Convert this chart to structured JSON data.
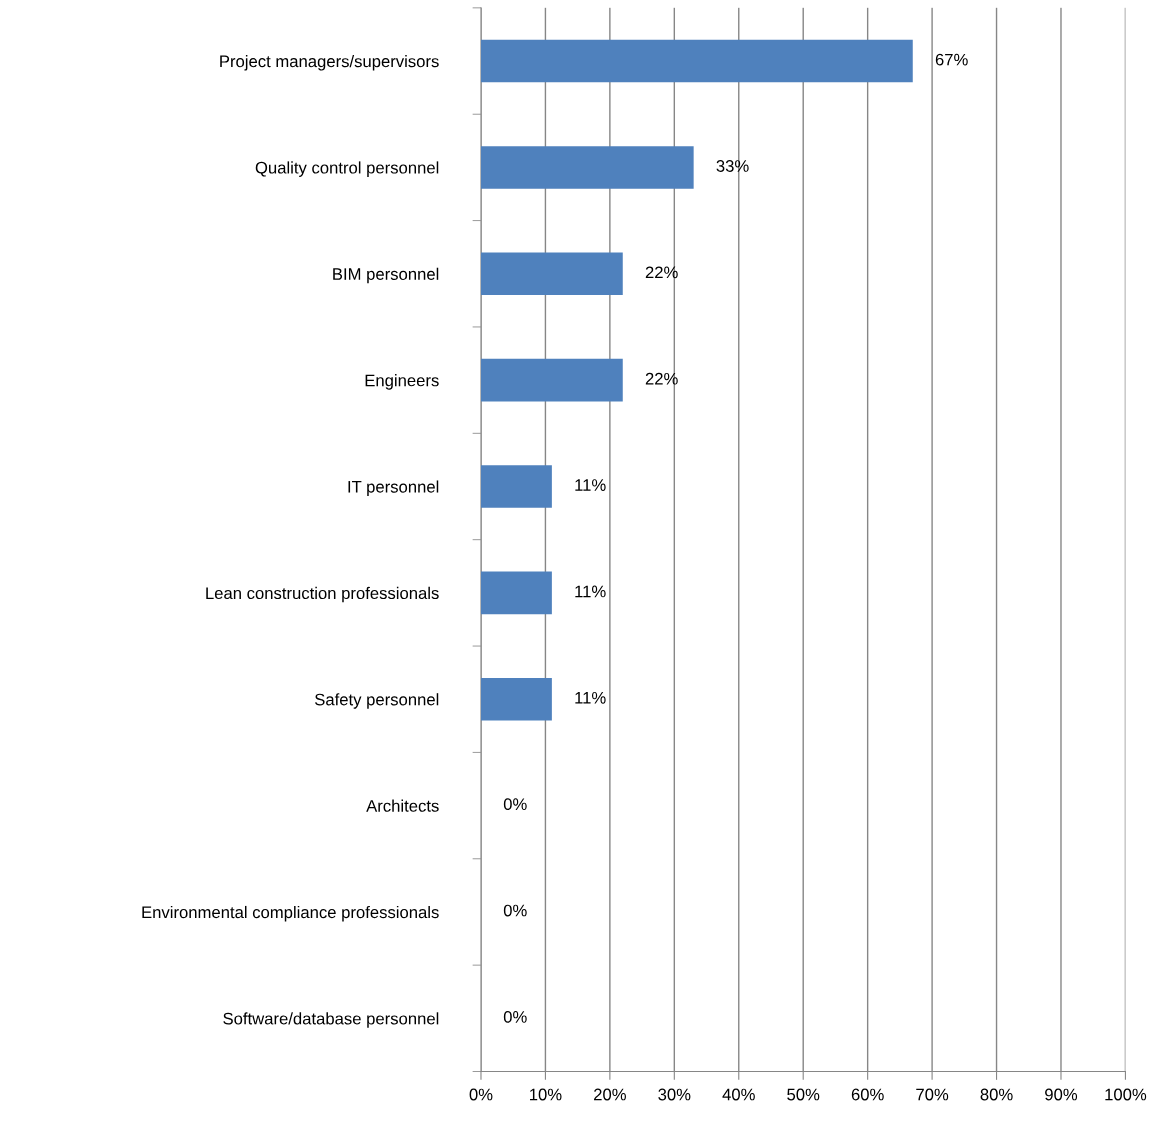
{
  "chart_data": {
    "type": "bar",
    "orientation": "horizontal",
    "categories": [
      "Project managers/supervisors",
      "Quality control personnel",
      "BIM personnel",
      "Engineers",
      "IT personnel",
      "Lean construction professionals",
      "Safety personnel",
      "Architects",
      "Environmental compliance professionals",
      "Software/database personnel"
    ],
    "values": [
      67,
      33,
      22,
      22,
      11,
      11,
      11,
      0,
      0,
      0
    ],
    "value_labels": [
      "67%",
      "33%",
      "22%",
      "22%",
      "11%",
      "11%",
      "11%",
      "0%",
      "0%",
      "0%"
    ],
    "color": "#4f81bd",
    "xlim": [
      0,
      100
    ],
    "xticks": [
      {
        "value": 0,
        "label": "0%"
      },
      {
        "value": 10,
        "label": "10%"
      },
      {
        "value": 20,
        "label": "20%"
      },
      {
        "value": 30,
        "label": "30%"
      },
      {
        "value": 40,
        "label": "40%"
      },
      {
        "value": 50,
        "label": "50%"
      },
      {
        "value": 60,
        "label": "60%"
      },
      {
        "value": 70,
        "label": "70%"
      },
      {
        "value": 80,
        "label": "80%"
      },
      {
        "value": 90,
        "label": "90%"
      },
      {
        "value": 100,
        "label": "100%"
      }
    ],
    "grid": "x",
    "legend": false
  }
}
